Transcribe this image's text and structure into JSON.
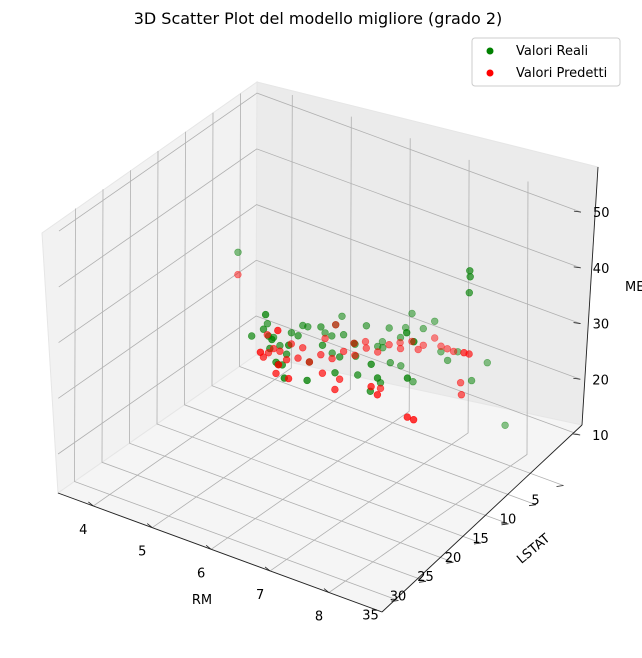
{
  "chart_data": {
    "type": "scatter",
    "title": "3D Scatter Plot del modello migliore (grado 2)",
    "xlabel": "RM",
    "ylabel": "LSTAT",
    "zlabel": "MEDV",
    "xlim": [
      3.4,
      8.9
    ],
    "ylim": [
      2,
      38
    ],
    "zlim": [
      3,
      52
    ],
    "x_ticks": [
      4,
      5,
      6,
      7,
      8
    ],
    "y_ticks": [
      5,
      10,
      15,
      20,
      25,
      30,
      35
    ],
    "z_ticks": [
      10,
      20,
      30,
      40,
      50
    ],
    "grid": true,
    "legend": "top-right",
    "series": [
      {
        "name": "Valori Reali",
        "color": "#008000",
        "points": [
          [
            3.6,
            7.5,
            26
          ],
          [
            4.8,
            15,
            23
          ],
          [
            5.0,
            16,
            22
          ],
          [
            5.1,
            18,
            24
          ],
          [
            5.2,
            17,
            22
          ],
          [
            5.3,
            16,
            24
          ],
          [
            5.4,
            15,
            25
          ],
          [
            5.5,
            19,
            23
          ],
          [
            5.6,
            18,
            26
          ],
          [
            5.7,
            17,
            21
          ],
          [
            5.8,
            16,
            27
          ],
          [
            5.9,
            15,
            22
          ],
          [
            6.0,
            14,
            25
          ],
          [
            6.1,
            13,
            23
          ],
          [
            6.2,
            12,
            26
          ],
          [
            6.3,
            11,
            22
          ],
          [
            6.4,
            10,
            25
          ],
          [
            6.5,
            9,
            23
          ],
          [
            6.6,
            8,
            27
          ],
          [
            6.7,
            7,
            24
          ],
          [
            6.8,
            6,
            25
          ],
          [
            7.0,
            7,
            21
          ],
          [
            7.1,
            5,
            20
          ],
          [
            7.6,
            5,
            20
          ],
          [
            8.0,
            6,
            11
          ],
          [
            5.2,
            20,
            27
          ],
          [
            5.4,
            21,
            25
          ],
          [
            5.6,
            22,
            24
          ],
          [
            5.8,
            23,
            25
          ],
          [
            6.0,
            24,
            30
          ],
          [
            6.2,
            20,
            28
          ],
          [
            6.4,
            19,
            26
          ],
          [
            5.7,
            25,
            35
          ],
          [
            5.9,
            26,
            32
          ],
          [
            6.1,
            27,
            29
          ],
          [
            6.3,
            28,
            28
          ],
          [
            6.5,
            26,
            27
          ],
          [
            7.2,
            22,
            25
          ],
          [
            7.4,
            24,
            32
          ],
          [
            7.6,
            25,
            31
          ],
          [
            8.0,
            24,
            40
          ],
          [
            8.2,
            26,
            34
          ],
          [
            8.4,
            27,
            42
          ],
          [
            8.5,
            18,
            45
          ],
          [
            8.6,
            19,
            50
          ],
          [
            8.7,
            20,
            50
          ],
          [
            5.5,
            12,
            22
          ],
          [
            5.9,
            11,
            21
          ],
          [
            6.2,
            9,
            20
          ],
          [
            6.6,
            10,
            19
          ],
          [
            6.9,
            11,
            18
          ],
          [
            5.3,
            13,
            23
          ],
          [
            5.6,
            10,
            24
          ],
          [
            6.1,
            8,
            20
          ],
          [
            6.4,
            7,
            23
          ],
          [
            5.8,
            14,
            24
          ],
          [
            6.3,
            15,
            23
          ],
          [
            6.7,
            13,
            22
          ],
          [
            5.0,
            20,
            25
          ],
          [
            7.3,
            9,
            22
          ],
          [
            6.6,
            22,
            26
          ],
          [
            6.8,
            20,
            25
          ],
          [
            7.0,
            18,
            23
          ],
          [
            5.4,
            9,
            21
          ],
          [
            7.8,
            10,
            21
          ]
        ]
      },
      {
        "name": "Valori Predetti",
        "color": "#ff0000",
        "points": [
          [
            3.6,
            7.5,
            22
          ],
          [
            4.8,
            15,
            21
          ],
          [
            5.0,
            16,
            20
          ],
          [
            5.1,
            18,
            21
          ],
          [
            5.2,
            17,
            21
          ],
          [
            5.3,
            16,
            22
          ],
          [
            5.4,
            15,
            21
          ],
          [
            5.5,
            19,
            22
          ],
          [
            5.6,
            18,
            22
          ],
          [
            5.7,
            17,
            21
          ],
          [
            5.8,
            16,
            22
          ],
          [
            5.9,
            15,
            21
          ],
          [
            6.0,
            14,
            22
          ],
          [
            6.1,
            13,
            21
          ],
          [
            6.2,
            12,
            22
          ],
          [
            6.3,
            11,
            21
          ],
          [
            6.4,
            10,
            22
          ],
          [
            6.5,
            9,
            21
          ],
          [
            6.6,
            8,
            22
          ],
          [
            6.7,
            7,
            21
          ],
          [
            6.8,
            6,
            22
          ],
          [
            7.0,
            7,
            22
          ],
          [
            7.2,
            8,
            23
          ],
          [
            7.4,
            9,
            24
          ],
          [
            7.8,
            12,
            22
          ],
          [
            8.0,
            14,
            22
          ],
          [
            5.2,
            20,
            22
          ],
          [
            5.6,
            22,
            22
          ],
          [
            6.0,
            24,
            24
          ],
          [
            6.2,
            20,
            23
          ],
          [
            6.4,
            19,
            22
          ],
          [
            5.8,
            27,
            30
          ],
          [
            6.0,
            26,
            34
          ],
          [
            6.2,
            28,
            30
          ],
          [
            7.4,
            24,
            28
          ],
          [
            7.6,
            25,
            28
          ],
          [
            8.2,
            26,
            27
          ],
          [
            8.4,
            27,
            28
          ],
          [
            8.5,
            18,
            34
          ],
          [
            8.6,
            20,
            36
          ],
          [
            5.5,
            12,
            21
          ],
          [
            6.0,
            10,
            21
          ],
          [
            6.4,
            8,
            21
          ],
          [
            6.8,
            9,
            22
          ],
          [
            5.9,
            11,
            21
          ],
          [
            6.6,
            22,
            23
          ],
          [
            7.0,
            18,
            22
          ],
          [
            5.4,
            9,
            21
          ]
        ]
      }
    ]
  }
}
